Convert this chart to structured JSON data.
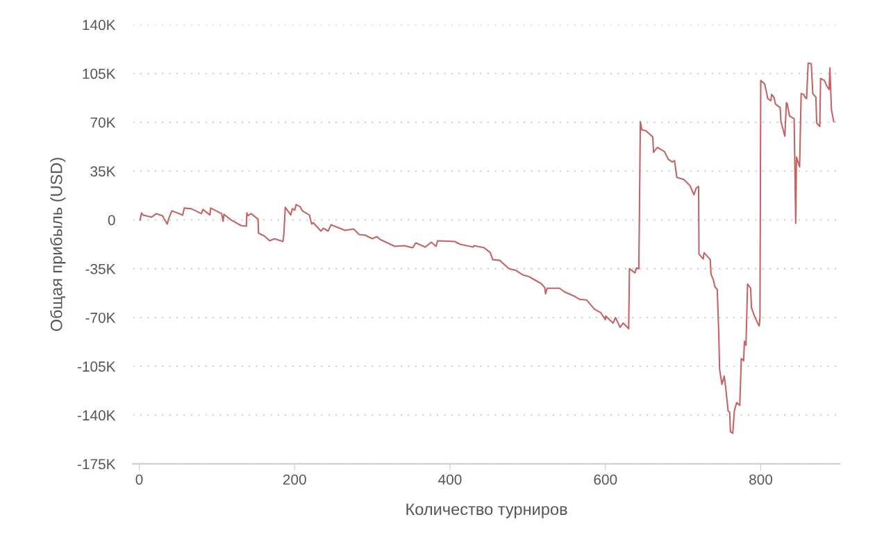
{
  "chart_data": {
    "type": "line",
    "xlabel": "Количество турниров",
    "ylabel": "Общая прибыль (USD)",
    "xlim": [
      -8,
      902
    ],
    "xticks": [
      0,
      200,
      400,
      600,
      800
    ],
    "ylim": [
      -175000,
      140000
    ],
    "yticks": [
      {
        "value": -175000,
        "label": "-175K"
      },
      {
        "value": -140000,
        "label": "-140K"
      },
      {
        "value": -105000,
        "label": "-105K"
      },
      {
        "value": -70000,
        "label": "-70K"
      },
      {
        "value": -35000,
        "label": "-35K"
      },
      0,
      {
        "value": 35000,
        "label": "35K"
      },
      {
        "value": 70000,
        "label": "70K"
      },
      {
        "value": 105000,
        "label": "105K"
      },
      {
        "value": 140000,
        "label": "140K"
      }
    ],
    "grid": "y",
    "legend": false,
    "marker": "none",
    "line_style": "solid",
    "series": [
      {
        "color": "#c46464",
        "x": [
          1,
          3,
          5,
          16,
          22,
          30,
          36,
          38,
          42,
          56,
          58,
          67,
          80,
          82,
          91,
          92,
          106,
          108,
          109,
          118,
          131,
          138,
          138.5,
          140,
          144,
          153,
          153.5,
          161,
          168,
          174,
          185,
          186,
          188,
          195,
          197,
          200,
          202,
          207,
          210,
          219,
          222,
          224,
          234,
          237,
          243,
          247,
          265,
          276,
          283,
          291,
          300,
          306,
          310,
          329,
          341,
          352,
          356,
          368,
          376,
          382,
          384,
          406,
          413,
          430,
          431,
          444,
          452,
          455,
          464,
          476,
          484,
          494,
          501,
          517,
          522,
          523,
          525,
          541,
          547,
          561,
          567,
          576,
          586,
          594,
          600,
          600.5,
          610,
          613,
          619,
          623,
          630,
          631,
          638,
          640,
          643,
          643.5,
          645,
          647,
          652,
          661,
          662,
          667,
          676,
          681,
          686,
          689,
          692,
          701,
          709,
          714,
          717,
          720,
          720.5,
          726,
          727,
          735,
          736,
          739,
          741,
          744,
          746,
          747,
          750,
          753,
          755,
          758,
          760,
          761,
          764,
          766,
          769,
          773,
          775,
          778,
          779,
          781,
          783,
          787,
          788,
          792,
          796,
          798,
          799,
          800,
          805,
          807,
          809,
          813,
          814,
          817,
          819,
          825,
          826,
          831,
          833,
          834,
          837,
          843,
          845,
          846,
          850,
          852,
          855,
          857,
          859,
          861,
          865,
          867,
          871,
          872,
          876,
          877,
          882,
          885,
          888,
          889,
          891,
          894
        ],
        "values": [
          0,
          5000,
          3500,
          2000,
          4500,
          3000,
          -3000,
          1000,
          6500,
          3500,
          8500,
          8000,
          4500,
          7500,
          3500,
          8500,
          4500,
          -1000,
          4000,
          0,
          -4000,
          -4500,
          5000,
          3000,
          4500,
          500,
          -9500,
          -11500,
          -15000,
          -13500,
          -15500,
          -11500,
          9000,
          3500,
          8000,
          7000,
          11000,
          9500,
          6500,
          3500,
          -3000,
          -2000,
          -8000,
          -6000,
          -8000,
          -3500,
          -7500,
          -6500,
          -10500,
          -11000,
          -13500,
          -12000,
          -14000,
          -19000,
          -18500,
          -20000,
          -16500,
          -19500,
          -16000,
          -19000,
          -15000,
          -15500,
          -17500,
          -19500,
          -18500,
          -20000,
          -23500,
          -28500,
          -29000,
          -35000,
          -36000,
          -39500,
          -40500,
          -45500,
          -48500,
          -53000,
          -49000,
          -49000,
          -51500,
          -55000,
          -57000,
          -57500,
          -64000,
          -66500,
          -71500,
          -69000,
          -74000,
          -70000,
          -77000,
          -74000,
          -78000,
          -35000,
          -38000,
          -34500,
          -35000,
          -13500,
          70500,
          64500,
          64000,
          59500,
          48500,
          52000,
          49000,
          43500,
          41500,
          42500,
          30500,
          29000,
          24500,
          18000,
          23000,
          24000,
          -24500,
          -28000,
          -23500,
          -28500,
          -39000,
          -43000,
          -48000,
          -50000,
          -82000,
          -107000,
          -118000,
          -112000,
          -121000,
          -137000,
          -138000,
          -152000,
          -153000,
          -137000,
          -131000,
          -133000,
          -99500,
          -101000,
          -87000,
          -90000,
          -46000,
          -49000,
          -63000,
          -69000,
          -74000,
          -76000,
          -70000,
          100000,
          97500,
          92500,
          87000,
          85500,
          90000,
          88000,
          83000,
          80500,
          70500,
          60000,
          84000,
          83500,
          74500,
          72500,
          -2500,
          45000,
          38000,
          90500,
          90000,
          88000,
          87000,
          112500,
          112000,
          90500,
          88000,
          69500,
          67000,
          101500,
          100000,
          96000,
          93500,
          109000,
          79000,
          70500
        ]
      }
    ]
  }
}
